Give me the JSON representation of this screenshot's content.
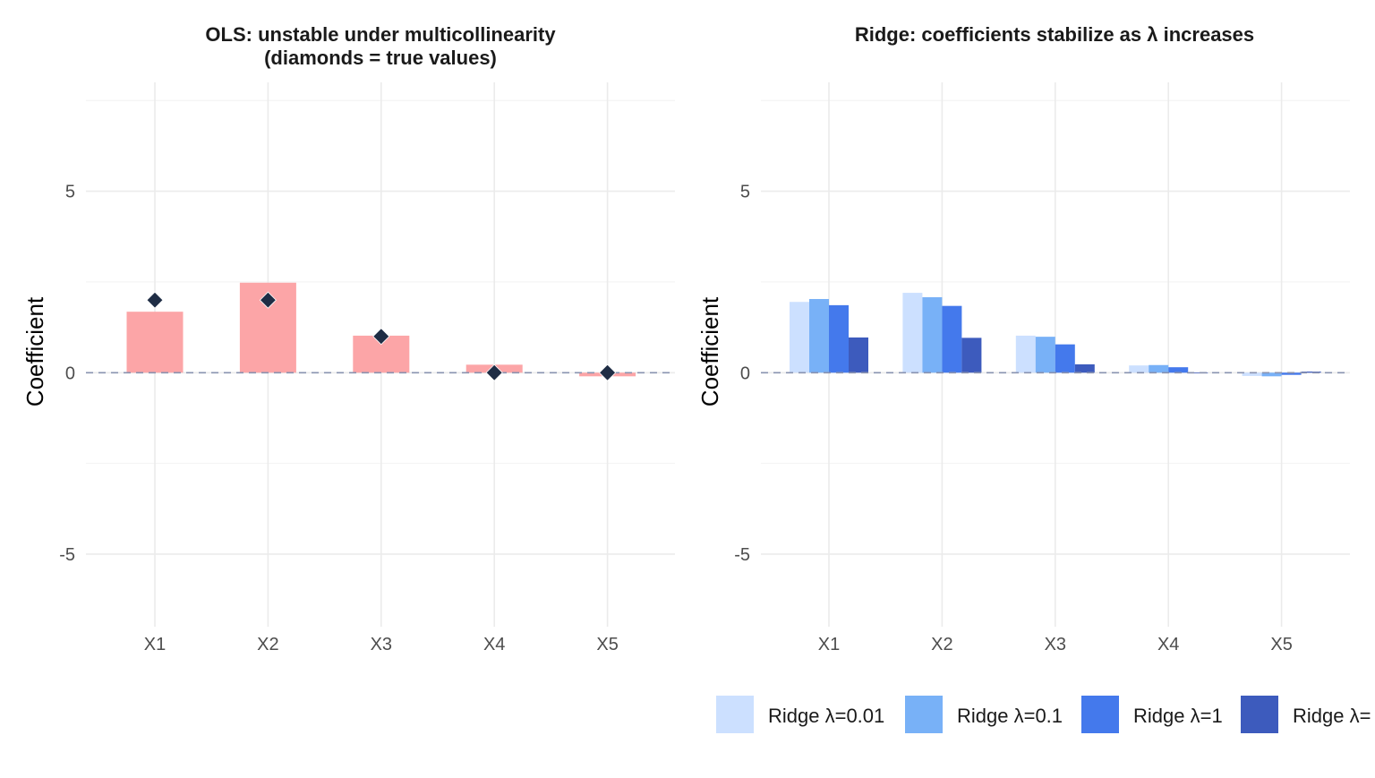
{
  "chart_data": [
    {
      "type": "bar",
      "title": "OLS: unstable under multicollinearity",
      "subtitle": "(diamonds = true values)",
      "xlabel": "",
      "ylabel": "Coefficient",
      "ylim": [
        -7,
        8
      ],
      "yticks": [
        -5,
        0,
        5
      ],
      "grid": true,
      "categories": [
        "X1",
        "X2",
        "X3",
        "X4",
        "X5"
      ],
      "series": [
        {
          "values": [
            1.68,
            2.48,
            1.02,
            0.22,
            -0.1
          ],
          "color": "#fca5a7"
        }
      ],
      "markers": {
        "shape": "diamond",
        "values": [
          2,
          2,
          1,
          0,
          0
        ],
        "color": "#1f2d45"
      },
      "reference_line": {
        "y": 0,
        "style": "dashed"
      }
    },
    {
      "type": "bar",
      "title": "Ridge: coefficients stabilize as λ increases",
      "xlabel": "",
      "ylabel": "Coefficient",
      "ylim": [
        -7,
        8
      ],
      "yticks": [
        -5,
        0,
        5
      ],
      "grid": true,
      "legend": "bottom",
      "categories": [
        "X1",
        "X2",
        "X3",
        "X4",
        "X5"
      ],
      "series": [
        {
          "name": "Ridge λ=0.01",
          "values": [
            1.95,
            2.2,
            1.02,
            0.2,
            -0.09
          ],
          "color": "#cce0ff"
        },
        {
          "name": "Ridge λ=0.1",
          "values": [
            2.03,
            2.08,
            0.99,
            0.21,
            -0.1
          ],
          "color": "#78b1f7"
        },
        {
          "name": "Ridge λ=1",
          "values": [
            1.86,
            1.84,
            0.78,
            0.15,
            -0.06
          ],
          "color": "#4479ec"
        },
        {
          "name": "Ridge λ=",
          "values": [
            0.97,
            0.96,
            0.23,
            0.0,
            0.03
          ],
          "color": "#3d5bbd"
        }
      ],
      "reference_line": {
        "y": 0,
        "style": "dashed"
      }
    }
  ]
}
